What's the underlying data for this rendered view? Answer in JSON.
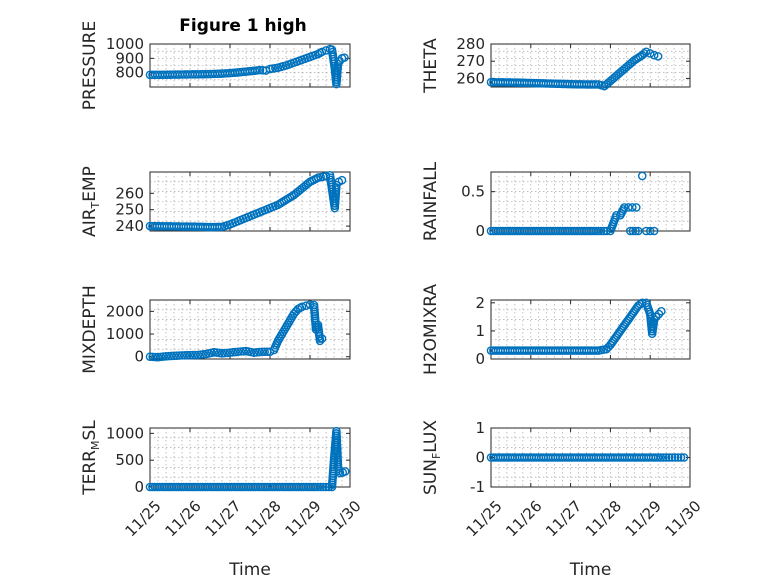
{
  "figure": {
    "title": "Figure 1 high",
    "marker_color": "#0072BD",
    "marker": "circle"
  },
  "chart_data": [
    {
      "type": "scatter",
      "ylabel": "PRESSURE",
      "xlim": [
        0,
        5
      ],
      "ylim": [
        700,
        1000
      ],
      "yticks": [
        800,
        900,
        1000
      ],
      "x_tick_labels": [],
      "xlabel": "",
      "grid": true,
      "points": [
        [
          0.0,
          785
        ],
        [
          0.25,
          785
        ],
        [
          0.5,
          786
        ],
        [
          0.75,
          787
        ],
        [
          1.0,
          788
        ],
        [
          1.25,
          789
        ],
        [
          1.5,
          790
        ],
        [
          1.75,
          793
        ],
        [
          2.0,
          797
        ],
        [
          2.25,
          803
        ],
        [
          2.5,
          810
        ],
        [
          2.75,
          818
        ],
        [
          2.9,
          815
        ],
        [
          3.0,
          825
        ],
        [
          3.2,
          835
        ],
        [
          3.4,
          850
        ],
        [
          3.6,
          870
        ],
        [
          3.8,
          890
        ],
        [
          4.0,
          910
        ],
        [
          4.2,
          930
        ],
        [
          4.3,
          945
        ],
        [
          4.4,
          955
        ],
        [
          4.5,
          965
        ],
        [
          4.55,
          960
        ],
        [
          4.62,
          830
        ],
        [
          4.66,
          720
        ],
        [
          4.7,
          860
        ],
        [
          4.74,
          880
        ],
        [
          4.8,
          900
        ],
        [
          4.86,
          905
        ]
      ]
    },
    {
      "type": "scatter",
      "ylabel": "THETA",
      "xlim": [
        0,
        5
      ],
      "ylim": [
        255,
        280
      ],
      "yticks": [
        260,
        270,
        280
      ],
      "x_tick_labels": [],
      "xlabel": "",
      "grid": true,
      "points": [
        [
          0.0,
          257.8
        ],
        [
          0.3,
          257.7
        ],
        [
          0.6,
          257.6
        ],
        [
          0.9,
          257.4
        ],
        [
          1.2,
          257.2
        ],
        [
          1.5,
          257.0
        ],
        [
          1.8,
          256.8
        ],
        [
          2.1,
          256.6
        ],
        [
          2.4,
          256.5
        ],
        [
          2.7,
          256.5
        ],
        [
          2.85,
          255.5
        ],
        [
          3.0,
          258.5
        ],
        [
          3.1,
          260.5
        ],
        [
          3.2,
          262.5
        ],
        [
          3.3,
          264.5
        ],
        [
          3.4,
          266.5
        ],
        [
          3.5,
          268.5
        ],
        [
          3.6,
          270.5
        ],
        [
          3.7,
          272.0
        ],
        [
          3.8,
          273.5
        ],
        [
          3.9,
          275.5
        ],
        [
          4.0,
          274.5
        ],
        [
          4.1,
          273.5
        ],
        [
          4.2,
          272.8
        ]
      ]
    },
    {
      "type": "scatter",
      "ylabel": "AIR_TEMP",
      "xlim": [
        0,
        5
      ],
      "ylim": [
        237,
        273
      ],
      "yticks": [
        240,
        250,
        260
      ],
      "x_tick_labels": [],
      "xlabel": "",
      "grid": true,
      "points": [
        [
          0.0,
          240.0
        ],
        [
          0.3,
          239.9
        ],
        [
          0.6,
          239.8
        ],
        [
          0.9,
          239.7
        ],
        [
          1.2,
          239.6
        ],
        [
          1.5,
          239.4
        ],
        [
          1.8,
          239.5
        ],
        [
          2.0,
          241
        ],
        [
          2.2,
          243
        ],
        [
          2.4,
          245
        ],
        [
          2.6,
          247
        ],
        [
          2.8,
          249
        ],
        [
          3.0,
          251
        ],
        [
          3.2,
          253
        ],
        [
          3.4,
          256
        ],
        [
          3.6,
          259
        ],
        [
          3.8,
          263
        ],
        [
          4.0,
          267
        ],
        [
          4.2,
          269.5
        ],
        [
          4.4,
          270.5
        ],
        [
          4.5,
          271.0
        ],
        [
          4.56,
          261
        ],
        [
          4.62,
          251
        ],
        [
          4.66,
          265
        ],
        [
          4.72,
          267
        ],
        [
          4.8,
          268
        ]
      ]
    },
    {
      "type": "scatter",
      "ylabel": "RAINFALL",
      "xlim": [
        0,
        5
      ],
      "ylim": [
        0,
        0.75
      ],
      "yticks": [
        0,
        0.5
      ],
      "x_tick_labels": [],
      "xlabel": "",
      "grid": true,
      "points": [
        [
          0.0,
          0
        ],
        [
          0.3,
          0
        ],
        [
          0.6,
          0
        ],
        [
          0.9,
          0
        ],
        [
          1.2,
          0
        ],
        [
          1.5,
          0
        ],
        [
          1.8,
          0
        ],
        [
          2.1,
          0
        ],
        [
          2.4,
          0
        ],
        [
          2.7,
          0
        ],
        [
          2.9,
          0
        ],
        [
          3.0,
          0
        ],
        [
          3.15,
          0.2
        ],
        [
          3.25,
          0.2
        ],
        [
          3.35,
          0.3
        ],
        [
          3.45,
          0.3
        ],
        [
          3.55,
          0.3
        ],
        [
          3.65,
          0.3
        ],
        [
          3.5,
          0
        ],
        [
          3.7,
          0
        ],
        [
          3.8,
          0.7
        ],
        [
          3.9,
          0
        ],
        [
          4.0,
          0
        ],
        [
          4.1,
          0
        ]
      ]
    },
    {
      "type": "scatter",
      "ylabel": "MIXDEPTH",
      "xlim": [
        0,
        5
      ],
      "ylim": [
        -100,
        2500
      ],
      "yticks": [
        0,
        1000,
        2000
      ],
      "x_tick_labels": [],
      "xlabel": "",
      "grid": true,
      "points": [
        [
          0.0,
          0
        ],
        [
          0.2,
          -20
        ],
        [
          0.4,
          20
        ],
        [
          0.6,
          40
        ],
        [
          0.8,
          60
        ],
        [
          1.0,
          70
        ],
        [
          1.2,
          80
        ],
        [
          1.4,
          120
        ],
        [
          1.6,
          200
        ],
        [
          1.8,
          150
        ],
        [
          2.0,
          180
        ],
        [
          2.2,
          220
        ],
        [
          2.4,
          250
        ],
        [
          2.6,
          180
        ],
        [
          2.8,
          220
        ],
        [
          3.0,
          220
        ],
        [
          3.1,
          300
        ],
        [
          3.2,
          700
        ],
        [
          3.3,
          1000
        ],
        [
          3.4,
          1300
        ],
        [
          3.5,
          1600
        ],
        [
          3.6,
          1900
        ],
        [
          3.7,
          2100
        ],
        [
          3.8,
          2200
        ],
        [
          3.9,
          2250
        ],
        [
          4.0,
          2300
        ],
        [
          4.1,
          2280
        ],
        [
          4.15,
          1200
        ],
        [
          4.2,
          1400
        ],
        [
          4.25,
          700
        ],
        [
          4.3,
          800
        ]
      ]
    },
    {
      "type": "scatter",
      "ylabel": "H2OMIXRA",
      "xlim": [
        0,
        5
      ],
      "ylim": [
        0,
        2.1
      ],
      "yticks": [
        0,
        1,
        2
      ],
      "x_tick_labels": [],
      "xlabel": "",
      "grid": true,
      "points": [
        [
          0.0,
          0.3
        ],
        [
          0.3,
          0.3
        ],
        [
          0.6,
          0.3
        ],
        [
          0.9,
          0.3
        ],
        [
          1.2,
          0.3
        ],
        [
          1.5,
          0.3
        ],
        [
          1.8,
          0.3
        ],
        [
          2.1,
          0.3
        ],
        [
          2.4,
          0.3
        ],
        [
          2.7,
          0.3
        ],
        [
          2.9,
          0.35
        ],
        [
          3.0,
          0.5
        ],
        [
          3.1,
          0.7
        ],
        [
          3.2,
          0.9
        ],
        [
          3.3,
          1.1
        ],
        [
          3.4,
          1.3
        ],
        [
          3.5,
          1.5
        ],
        [
          3.6,
          1.7
        ],
        [
          3.7,
          1.9
        ],
        [
          3.8,
          2.0
        ],
        [
          3.9,
          2.0
        ],
        [
          4.0,
          1.6
        ],
        [
          4.05,
          0.9
        ],
        [
          4.1,
          1.4
        ],
        [
          4.15,
          1.5
        ],
        [
          4.22,
          1.6
        ],
        [
          4.28,
          1.7
        ]
      ]
    },
    {
      "type": "scatter",
      "ylabel": "TERR_MSL",
      "xlim": [
        0,
        5
      ],
      "ylim": [
        0,
        1100
      ],
      "yticks": [
        0,
        500,
        1000
      ],
      "x_tick_labels": [
        "11/25",
        "11/26",
        "11/27",
        "11/28",
        "11/29",
        "11/30"
      ],
      "xlabel": "Time",
      "grid": true,
      "points": [
        [
          0.0,
          0
        ],
        [
          0.3,
          0
        ],
        [
          0.6,
          0
        ],
        [
          0.9,
          0
        ],
        [
          1.2,
          0
        ],
        [
          1.5,
          0
        ],
        [
          1.8,
          0
        ],
        [
          2.1,
          0
        ],
        [
          2.4,
          0
        ],
        [
          2.7,
          0
        ],
        [
          3.0,
          0
        ],
        [
          3.3,
          0
        ],
        [
          3.6,
          0
        ],
        [
          3.9,
          0
        ],
        [
          4.2,
          0
        ],
        [
          4.4,
          0
        ],
        [
          4.55,
          0
        ],
        [
          4.6,
          500
        ],
        [
          4.66,
          1040
        ],
        [
          4.7,
          380
        ],
        [
          4.75,
          260
        ],
        [
          4.82,
          270
        ],
        [
          4.88,
          290
        ]
      ]
    },
    {
      "type": "scatter",
      "ylabel": "SUN_FLUX",
      "xlim": [
        0,
        5
      ],
      "ylim": [
        -1,
        1
      ],
      "yticks": [
        -1,
        0,
        1
      ],
      "x_tick_labels": [
        "11/25",
        "11/26",
        "11/27",
        "11/28",
        "11/29",
        "11/30"
      ],
      "xlabel": "Time",
      "grid": true,
      "points": [
        [
          0.0,
          0
        ],
        [
          0.3,
          0
        ],
        [
          0.6,
          0
        ],
        [
          0.9,
          0
        ],
        [
          1.2,
          0
        ],
        [
          1.5,
          0
        ],
        [
          1.8,
          0
        ],
        [
          2.1,
          0
        ],
        [
          2.4,
          0
        ],
        [
          2.7,
          0
        ],
        [
          3.0,
          0
        ],
        [
          3.3,
          0
        ],
        [
          3.6,
          0
        ],
        [
          3.9,
          0
        ],
        [
          4.2,
          0
        ],
        [
          4.4,
          0
        ],
        [
          4.55,
          0
        ],
        [
          4.7,
          0
        ],
        [
          4.85,
          0
        ]
      ]
    }
  ]
}
